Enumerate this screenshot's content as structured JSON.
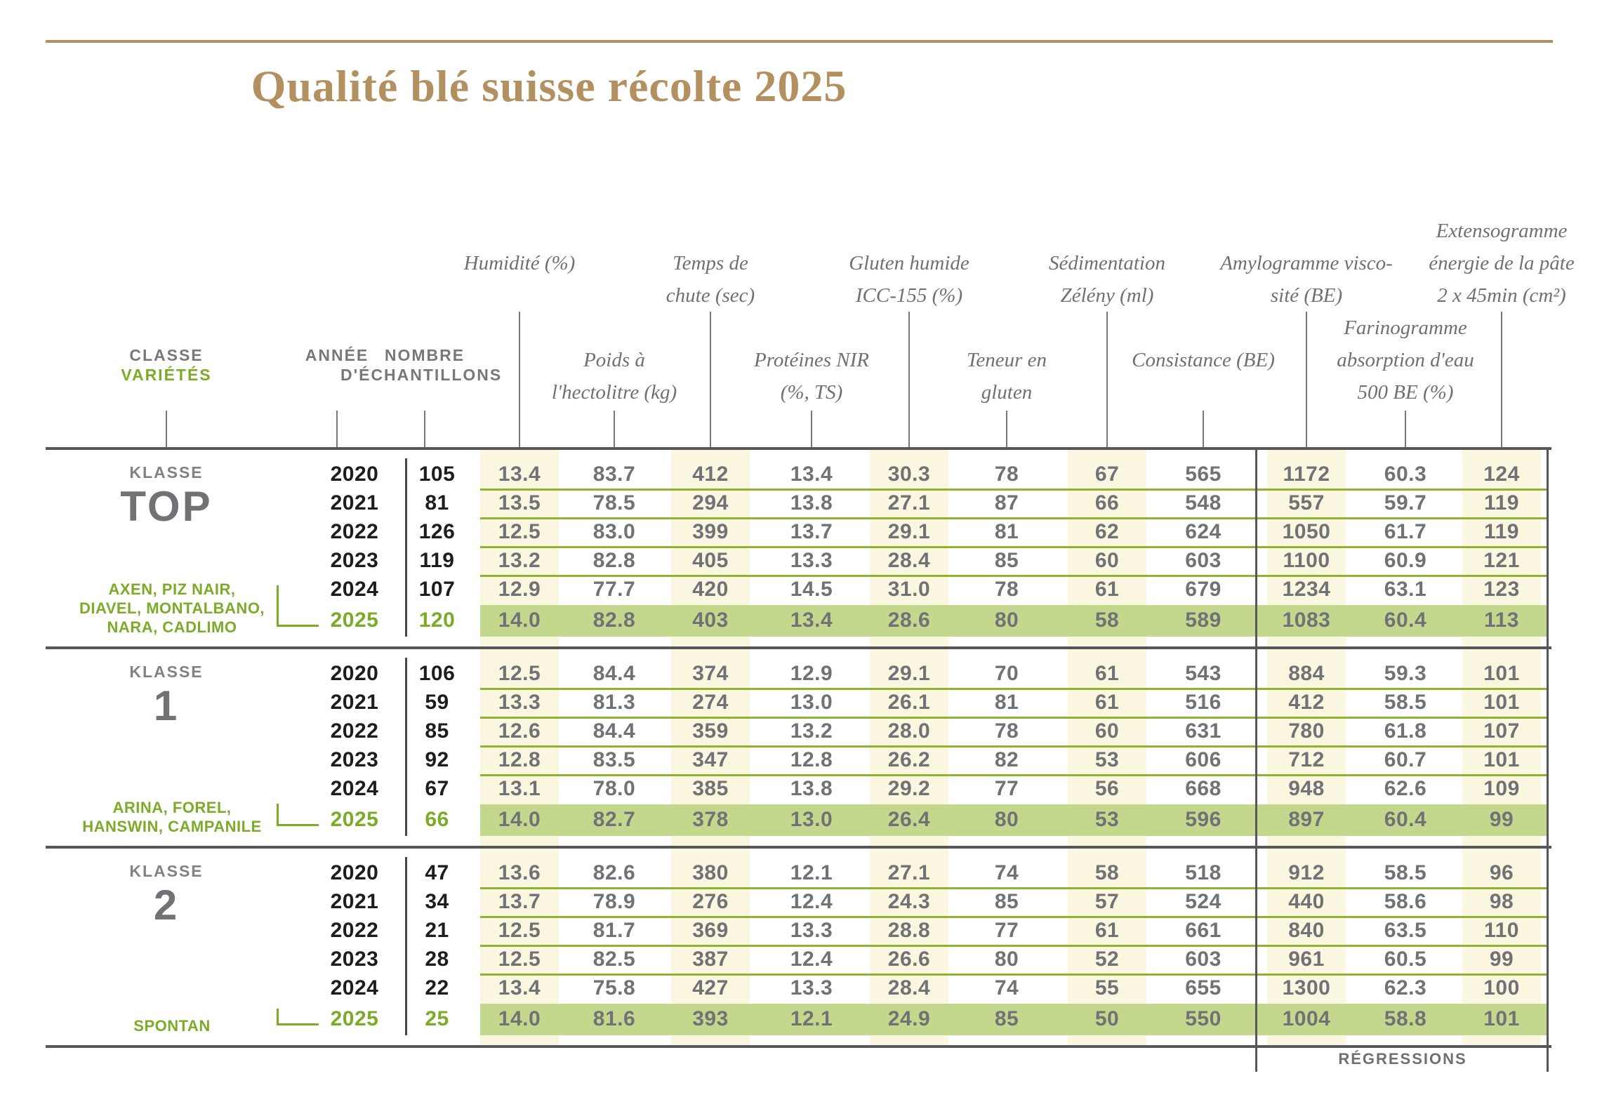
{
  "title": "Qualité blé suisse récolte 2025",
  "colors": {
    "accent_tan": "#b3905f",
    "accent_green": "#7cab28",
    "highlight_band_green": "#c3d88d",
    "separator_green": "#8db32f",
    "stripe_cream": "#faf6e0",
    "border_dark": "#56575a",
    "header_gray": "#6f7072",
    "value_gray": "#717276",
    "year_black": "#1d1d1f"
  },
  "header": {
    "classe_label": "CLASSE",
    "varietes_label": "VARIÉTÉS",
    "annee_label": "ANNÉE",
    "nombre_label": "NOMBRE",
    "echantillons_label": "D'ÉCHANTILLONS",
    "upper_columns": [
      [
        "Humidité (%)"
      ],
      [
        "Temps de",
        "chute (sec)"
      ],
      [
        "Gluten humide",
        "ICC-155 (%)"
      ],
      [
        "Sédimentation",
        "Zélény (ml)"
      ],
      [
        "Amylogramme visco-",
        "sité (BE)"
      ],
      [
        "Extensogramme",
        "énergie de la pâte",
        "2 x 45min (cm²)"
      ]
    ],
    "lower_columns": [
      [
        "Poids à",
        "l'hectolitre (kg)"
      ],
      [
        "Protéines NIR",
        "(%, TS)"
      ],
      [
        "Teneur en",
        "gluten"
      ],
      [
        "Consistance (BE)"
      ],
      [
        "Farinogramme",
        "absorption d'eau",
        "500 BE (%)"
      ]
    ]
  },
  "regressions_label": "RÉGRESSIONS",
  "blocks": [
    {
      "klasse_label": "KLASSE",
      "klasse_value": "TOP",
      "varieties": [
        "AXEN, PIZ NAIR,",
        "DIAVEL, MONTALBANO,",
        "NARA, CADLIMO"
      ],
      "rows": [
        {
          "year": "2020",
          "samples": "105",
          "values": [
            "13.4",
            "83.7",
            "412",
            "13.4",
            "30.3",
            "78",
            "67",
            "565",
            "1172",
            "60.3",
            "124"
          ]
        },
        {
          "year": "2021",
          "samples": "81",
          "values": [
            "13.5",
            "78.5",
            "294",
            "13.8",
            "27.1",
            "87",
            "66",
            "548",
            "557",
            "59.7",
            "119"
          ]
        },
        {
          "year": "2022",
          "samples": "126",
          "values": [
            "12.5",
            "83.0",
            "399",
            "13.7",
            "29.1",
            "81",
            "62",
            "624",
            "1050",
            "61.7",
            "119"
          ]
        },
        {
          "year": "2023",
          "samples": "119",
          "values": [
            "13.2",
            "82.8",
            "405",
            "13.3",
            "28.4",
            "85",
            "60",
            "603",
            "1100",
            "60.9",
            "121"
          ]
        },
        {
          "year": "2024",
          "samples": "107",
          "values": [
            "12.9",
            "77.7",
            "420",
            "14.5",
            "31.0",
            "78",
            "61",
            "679",
            "1234",
            "63.1",
            "123"
          ]
        },
        {
          "year": "2025",
          "samples": "120",
          "values": [
            "14.0",
            "82.8",
            "403",
            "13.4",
            "28.6",
            "80",
            "58",
            "589",
            "1083",
            "60.4",
            "113"
          ],
          "highlight": true
        }
      ]
    },
    {
      "klasse_label": "KLASSE",
      "klasse_value": "1",
      "varieties": [
        "ARINA, FOREL,",
        "HANSWIN, CAMPANILE"
      ],
      "rows": [
        {
          "year": "2020",
          "samples": "106",
          "values": [
            "12.5",
            "84.4",
            "374",
            "12.9",
            "29.1",
            "70",
            "61",
            "543",
            "884",
            "59.3",
            "101"
          ]
        },
        {
          "year": "2021",
          "samples": "59",
          "values": [
            "13.3",
            "81.3",
            "274",
            "13.0",
            "26.1",
            "81",
            "61",
            "516",
            "412",
            "58.5",
            "101"
          ]
        },
        {
          "year": "2022",
          "samples": "85",
          "values": [
            "12.6",
            "84.4",
            "359",
            "13.2",
            "28.0",
            "78",
            "60",
            "631",
            "780",
            "61.8",
            "107"
          ]
        },
        {
          "year": "2023",
          "samples": "92",
          "values": [
            "12.8",
            "83.5",
            "347",
            "12.8",
            "26.2",
            "82",
            "53",
            "606",
            "712",
            "60.7",
            "101"
          ]
        },
        {
          "year": "2024",
          "samples": "67",
          "values": [
            "13.1",
            "78.0",
            "385",
            "13.8",
            "29.2",
            "77",
            "56",
            "668",
            "948",
            "62.6",
            "109"
          ]
        },
        {
          "year": "2025",
          "samples": "66",
          "values": [
            "14.0",
            "82.7",
            "378",
            "13.0",
            "26.4",
            "80",
            "53",
            "596",
            "897",
            "60.4",
            "99"
          ],
          "highlight": true
        }
      ]
    },
    {
      "klasse_label": "KLASSE",
      "klasse_value": "2",
      "varieties": [
        "SPONTAN"
      ],
      "rows": [
        {
          "year": "2020",
          "samples": "47",
          "values": [
            "13.6",
            "82.6",
            "380",
            "12.1",
            "27.1",
            "74",
            "58",
            "518",
            "912",
            "58.5",
            "96"
          ]
        },
        {
          "year": "2021",
          "samples": "34",
          "values": [
            "13.7",
            "78.9",
            "276",
            "12.4",
            "24.3",
            "85",
            "57",
            "524",
            "440",
            "58.6",
            "98"
          ]
        },
        {
          "year": "2022",
          "samples": "21",
          "values": [
            "12.5",
            "81.7",
            "369",
            "13.3",
            "28.8",
            "77",
            "61",
            "661",
            "840",
            "63.5",
            "110"
          ]
        },
        {
          "year": "2023",
          "samples": "28",
          "values": [
            "12.5",
            "82.5",
            "387",
            "12.4",
            "26.6",
            "80",
            "52",
            "603",
            "961",
            "60.5",
            "99"
          ]
        },
        {
          "year": "2024",
          "samples": "22",
          "values": [
            "13.4",
            "75.8",
            "427",
            "13.3",
            "28.4",
            "74",
            "55",
            "655",
            "1300",
            "62.3",
            "100"
          ]
        },
        {
          "year": "2025",
          "samples": "25",
          "values": [
            "14.0",
            "81.6",
            "393",
            "12.1",
            "24.9",
            "85",
            "50",
            "550",
            "1004",
            "58.8",
            "101"
          ],
          "highlight": true
        }
      ]
    }
  ]
}
